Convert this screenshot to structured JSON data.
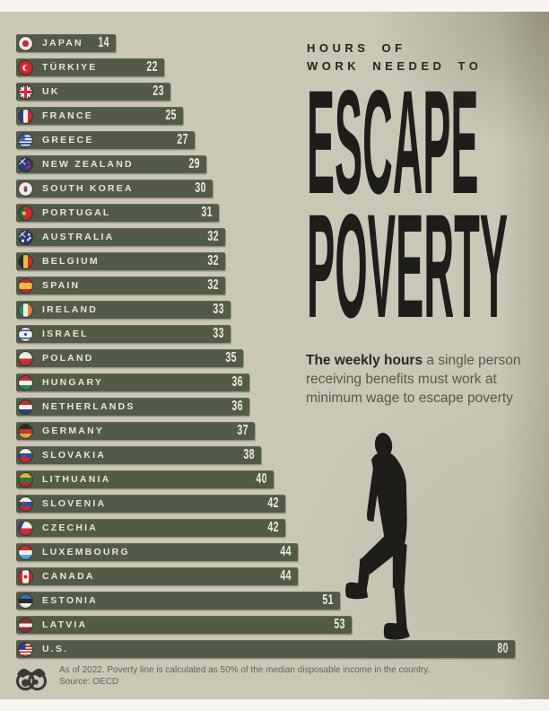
{
  "header": {
    "kicker_line1": "HOURS OF",
    "kicker_line2": "WORK NEEDED TO",
    "title_line1": "ESCAPE",
    "title_line2": "POVERTY"
  },
  "subtitle": {
    "bold": "The weekly hours",
    "rest": " a single person receiving benefits must work at minimum wage to escape poverty"
  },
  "footer": {
    "note": "As of 2022. Poverty line is calculated as 50% of the median disposable income in the country.",
    "source": "Source: OECD"
  },
  "colors": {
    "background": "#cac7b7",
    "bar": "#535b48",
    "bar_label": "#e8e6d7",
    "title": "#1f1d19",
    "silhouette": "#1d1b18"
  },
  "chart_data": {
    "type": "bar",
    "orientation": "horizontal",
    "title": "Hours of Work Needed to Escape Poverty",
    "xlabel": "hours per week",
    "xlim": [
      0,
      80
    ],
    "grid": false,
    "points": [
      {
        "id": "japan",
        "country": "JAPAN",
        "hours": 14,
        "flag_css": "radial-gradient(circle at 50% 50%, #c4342f 0 34%, rgba(0,0,0,0) 35%), #efefe8"
      },
      {
        "id": "turkiye",
        "country": "TÜRKIYE",
        "hours": 22,
        "flag_css": "radial-gradient(circle at 60% 50%, #d6272f 0 22%, rgba(0,0,0,0) 23%), radial-gradient(circle at 50% 50%, #ffffff 0 30%, rgba(0,0,0,0) 31%), #d6272f"
      },
      {
        "id": "uk",
        "country": "UK",
        "hours": 23,
        "flag_css": "linear-gradient(90deg, rgba(0,0,0,0) 41%, #cf2b36 41% 59%, rgba(0,0,0,0) 59%), linear-gradient(0deg, rgba(0,0,0,0) 41%, #cf2b36 41% 59%, rgba(0,0,0,0) 59%), linear-gradient(90deg, rgba(0,0,0,0) 33%, #f2f2ec 33% 67%, rgba(0,0,0,0) 67%), linear-gradient(0deg, rgba(0,0,0,0) 33%, #f2f2ec 33% 67%, rgba(0,0,0,0) 67%), linear-gradient(45deg, rgba(0,0,0,0) 44%, #f2f2ec 44% 56%, rgba(0,0,0,0) 56%), linear-gradient(135deg, rgba(0,0,0,0) 44%, #f2f2ec 44% 56%, rgba(0,0,0,0) 56%), #2b3f82"
      },
      {
        "id": "france",
        "country": "FRANCE",
        "hours": 25,
        "flag_css": "linear-gradient(90deg, #2c3e8f 0 34%, #f2f2ec 34% 66%, #d6272f 66%)"
      },
      {
        "id": "greece",
        "country": "GREECE",
        "hours": 27,
        "flag_css": "linear-gradient(#33599e, #33599e) left top / 45% 45% no-repeat, repeating-linear-gradient(180deg, #33599e 0 1.7px, #eef0f5 1.7px 3.4px)"
      },
      {
        "id": "new-zealand",
        "country": "NEW ZEALAND",
        "hours": 29,
        "flag_css": "radial-gradient(circle at 72% 35%, #cf2b36 0 9%, rgba(0,0,0,0) 10%), radial-gradient(circle at 80% 60%, #cf2b36 0 9%, rgba(0,0,0,0) 10%), radial-gradient(circle at 62% 72%, #cf2b36 0 9%, rgba(0,0,0,0) 10%), linear-gradient(45deg, rgba(0,0,0,0) 45%, #eeeee8 45% 55%, rgba(0,0,0,0) 55%) left top / 50% 50% no-repeat, linear-gradient(135deg, rgba(0,0,0,0) 45%, #eeeee8 45% 55%, rgba(0,0,0,0) 55%) left top / 50% 50% no-repeat, #263c80"
      },
      {
        "id": "south-korea",
        "country": "SOUTH KOREA",
        "hours": 30,
        "flag_css": "radial-gradient(circle at 50% 41%, #cd3a44 0 16%, rgba(0,0,0,0) 17%), radial-gradient(circle at 50% 59%, #29509e 0 16%, rgba(0,0,0,0) 17%), #efefe8"
      },
      {
        "id": "portugal",
        "country": "PORTUGAL",
        "hours": 31,
        "flag_css": "radial-gradient(circle at 38% 50%, #e8c13c 0 17%, rgba(0,0,0,0) 18%), linear-gradient(90deg, #1f6b3a 0 38%, #cf2b36 38%)"
      },
      {
        "id": "australia",
        "country": "AUSTRALIA",
        "hours": 32,
        "flag_css": "radial-gradient(circle at 75% 30%, #eeeee8 0 8%, rgba(0,0,0,0) 9%), radial-gradient(circle at 82% 55%, #eeeee8 0 8%, rgba(0,0,0,0) 9%), radial-gradient(circle at 68% 68%, #eeeee8 0 8%, rgba(0,0,0,0) 9%), radial-gradient(circle at 30% 75%, #eeeee8 0 10%, rgba(0,0,0,0) 11%), linear-gradient(45deg, rgba(0,0,0,0) 45%, #eeeee8 45% 55%, rgba(0,0,0,0) 55%) left top / 50% 50% no-repeat, linear-gradient(135deg, rgba(0,0,0,0) 45%, #eeeee8 45% 55%, rgba(0,0,0,0) 55%) left top / 50% 50% no-repeat, #263c80"
      },
      {
        "id": "belgium",
        "country": "BELGIUM",
        "hours": 32,
        "flag_css": "linear-gradient(90deg, #2b2b28 0 34%, #e8c13c 34% 66%, #cf2b36 66%)"
      },
      {
        "id": "spain",
        "country": "SPAIN",
        "hours": 32,
        "flag_css": "linear-gradient(180deg, #cf2b36 0 26%, #e8c13c 26% 74%, #cf2b36 74%)"
      },
      {
        "id": "ireland",
        "country": "IRELAND",
        "hours": 33,
        "flag_css": "linear-gradient(90deg, #2a8f5a 0 34%, #f2f2ec 34% 66%, #df8a3a 66%)"
      },
      {
        "id": "israel",
        "country": "ISRAEL",
        "hours": 33,
        "flag_css": "radial-gradient(circle at 50% 50%, #2a4fa2 0 14%, rgba(0,0,0,0) 15%), linear-gradient(180deg, rgba(0,0,0,0) 0 16%, #2a4fa2 16% 28%, rgba(0,0,0,0) 28% 72%, #2a4fa2 72% 84%, rgba(0,0,0,0) 84%), #efefe8"
      },
      {
        "id": "poland",
        "country": "POLAND",
        "hours": 35,
        "flag_css": "linear-gradient(180deg, #efefe8 0 50%, #cf2b36 50%)"
      },
      {
        "id": "hungary",
        "country": "HUNGARY",
        "hours": 36,
        "flag_css": "linear-gradient(180deg, #cf2b36 0 34%, #f2f2ec 34% 66%, #2a8f5a 66%)"
      },
      {
        "id": "netherlands",
        "country": "NETHERLANDS",
        "hours": 36,
        "flag_css": "linear-gradient(180deg, #bf2b33 0 34%, #f2f2ec 34% 66%, #2c3e8f 66%)"
      },
      {
        "id": "germany",
        "country": "GERMANY",
        "hours": 37,
        "flag_css": "linear-gradient(180deg, #2b2b28 0 34%, #c6342e 34% 66%, #e2a93b 66%)"
      },
      {
        "id": "slovakia",
        "country": "SLOVAKIA",
        "hours": 38,
        "flag_css": "radial-gradient(circle at 38% 58%, #cf2b36 0 14%, rgba(0,0,0,0) 15%), linear-gradient(180deg, #f2f2ec 0 34%, #2c4e9e 34% 66%, #cf2b36 66%)"
      },
      {
        "id": "lithuania",
        "country": "LITHUANIA",
        "hours": 40,
        "flag_css": "linear-gradient(180deg, #e2b93b 0 34%, #2a7a3f 34% 66%, #bf2b33 66%)"
      },
      {
        "id": "slovenia",
        "country": "SLOVENIA",
        "hours": 42,
        "flag_css": "radial-gradient(circle at 35% 42%, #cf2b36 0 12%, rgba(0,0,0,0) 13%), linear-gradient(180deg, #f2f2ec 0 34%, #2c4e9e 34% 66%, #cf2b36 66%)"
      },
      {
        "id": "czechia",
        "country": "CZECHIA",
        "hours": 42,
        "flag_css": "linear-gradient(115deg, #2c4e9e 28%, rgba(0,0,0,0) 28.5%), linear-gradient(180deg, #f2f2ec 0 50%, #cf2b36 50%)"
      },
      {
        "id": "luxembourg",
        "country": "LUXEMBOURG",
        "hours": 44,
        "flag_css": "linear-gradient(180deg, #d6272f 0 34%, #f2f2ec 34% 66%, #5aa7d6 66%)"
      },
      {
        "id": "canada",
        "country": "CANADA",
        "hours": 44,
        "flag_css": "radial-gradient(circle at 50% 50%, #cf2b36 0 18%, rgba(0,0,0,0) 19%), linear-gradient(90deg, #cf2b36 0 28%, #f2f2ec 28% 72%, #cf2b36 72%)"
      },
      {
        "id": "estonia",
        "country": "ESTONIA",
        "hours": 51,
        "flag_css": "linear-gradient(180deg, #3a6fb5 0 34%, #2b2b28 34% 66%, #f2f2ec 66%)"
      },
      {
        "id": "latvia",
        "country": "LATVIA",
        "hours": 53,
        "flag_css": "linear-gradient(180deg, #8e2f3a 0 38%, #f2f2ec 38% 62%, #8e2f3a 62%)"
      },
      {
        "id": "us",
        "country": "U.S.",
        "hours": 80,
        "flag_css": "linear-gradient(#2c3e8f, #2c3e8f) left top / 50% 50% no-repeat, repeating-linear-gradient(180deg, #c6342e 0 1.6px, #f2f2ec 1.6px 3.2px)"
      }
    ]
  }
}
